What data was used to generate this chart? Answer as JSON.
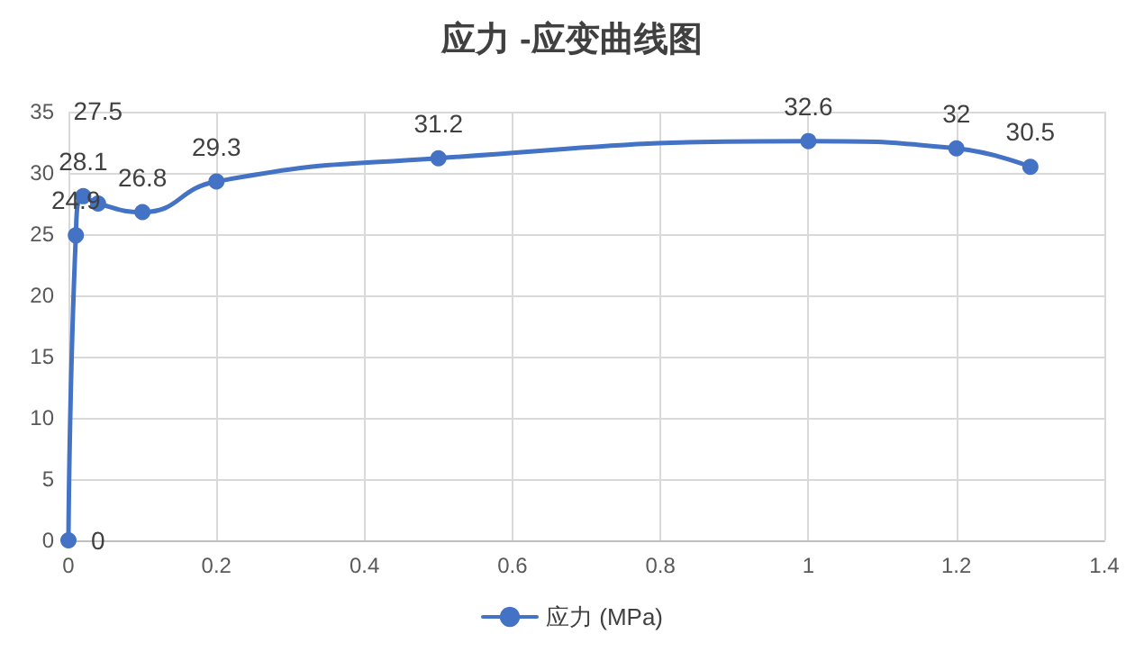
{
  "chart_data": {
    "type": "line",
    "title": "应力 -应变曲线图",
    "x": [
      0,
      0.01,
      0.02,
      0.04,
      0.1,
      0.2,
      0.5,
      1,
      1.2,
      1.3
    ],
    "series": [
      {
        "name": "应力 (MPa)",
        "color": "#4472c4",
        "values": [
          0,
          24.9,
          28.1,
          27.5,
          26.8,
          29.3,
          31.2,
          32.6,
          32,
          30.5
        ]
      }
    ],
    "xlim": [
      0,
      1.4
    ],
    "xticks": [
      0,
      0.2,
      0.4,
      0.6,
      0.8,
      1,
      1.2,
      1.4
    ],
    "ylim": [
      0,
      35
    ],
    "yticks": [
      0,
      5,
      10,
      15,
      20,
      25,
      30,
      35
    ],
    "grid": true,
    "legend": "bottom",
    "marker": "circle",
    "line_style": "solid",
    "data_labels": true
  }
}
